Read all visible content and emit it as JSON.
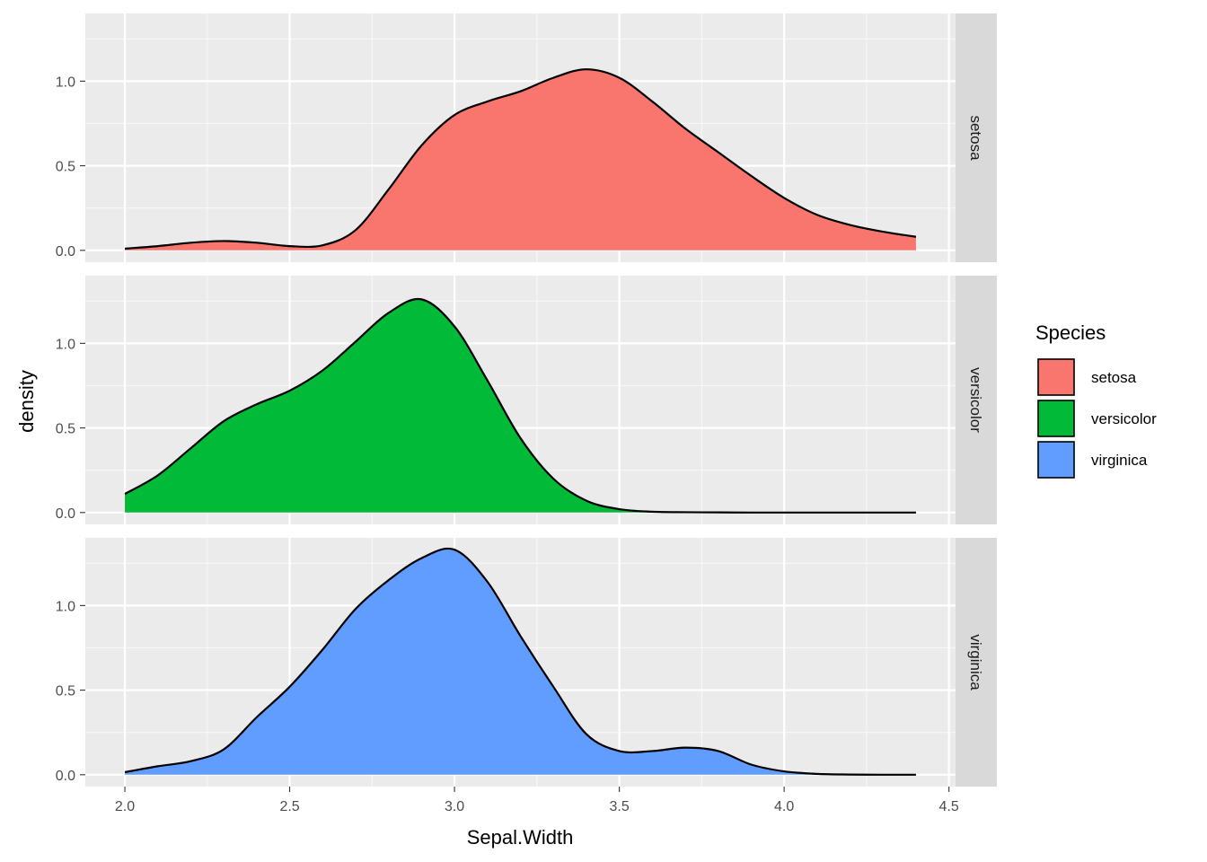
{
  "chart_data": {
    "type": "area",
    "xlabel": "Sepal.Width",
    "ylabel": "density",
    "xlim": [
      1.88,
      4.52
    ],
    "ylim": [
      -0.07,
      1.4
    ],
    "x_ticks": [
      "2.0",
      "2.5",
      "3.0",
      "3.5",
      "4.0",
      "4.5"
    ],
    "x_tick_values": [
      2.0,
      2.5,
      3.0,
      3.5,
      4.0,
      4.5
    ],
    "y_ticks": [
      "0.0",
      "0.5",
      "1.0"
    ],
    "y_tick_values": [
      0.0,
      0.5,
      1.0
    ],
    "grid": true,
    "facet_by": "Species",
    "legend": {
      "title": "Species",
      "position": "right",
      "entries": [
        "setosa",
        "versicolor",
        "virginica"
      ]
    },
    "x": [
      2.0,
      2.1,
      2.2,
      2.3,
      2.4,
      2.5,
      2.6,
      2.7,
      2.8,
      2.9,
      3.0,
      3.1,
      3.2,
      3.3,
      3.4,
      3.5,
      3.6,
      3.7,
      3.8,
      3.9,
      4.0,
      4.1,
      4.2,
      4.3,
      4.4
    ],
    "series": [
      {
        "name": "setosa",
        "color": "#F8766D",
        "values": [
          0.01,
          0.025,
          0.045,
          0.055,
          0.045,
          0.025,
          0.03,
          0.12,
          0.36,
          0.62,
          0.8,
          0.88,
          0.94,
          1.02,
          1.07,
          1.02,
          0.88,
          0.72,
          0.58,
          0.44,
          0.31,
          0.21,
          0.15,
          0.11,
          0.08
        ]
      },
      {
        "name": "versicolor",
        "color": "#00BA38",
        "values": [
          0.11,
          0.22,
          0.38,
          0.54,
          0.64,
          0.72,
          0.84,
          1.01,
          1.18,
          1.26,
          1.1,
          0.78,
          0.44,
          0.2,
          0.07,
          0.02,
          0.005,
          0.002,
          0.001,
          0.0,
          0.0,
          0.0,
          0.0,
          0.0,
          0.0
        ]
      },
      {
        "name": "virginica",
        "color": "#619CFF",
        "values": [
          0.015,
          0.05,
          0.08,
          0.15,
          0.34,
          0.52,
          0.74,
          0.98,
          1.15,
          1.28,
          1.33,
          1.14,
          0.82,
          0.52,
          0.24,
          0.14,
          0.14,
          0.16,
          0.14,
          0.06,
          0.02,
          0.005,
          0.001,
          0.0,
          0.0
        ]
      }
    ]
  }
}
